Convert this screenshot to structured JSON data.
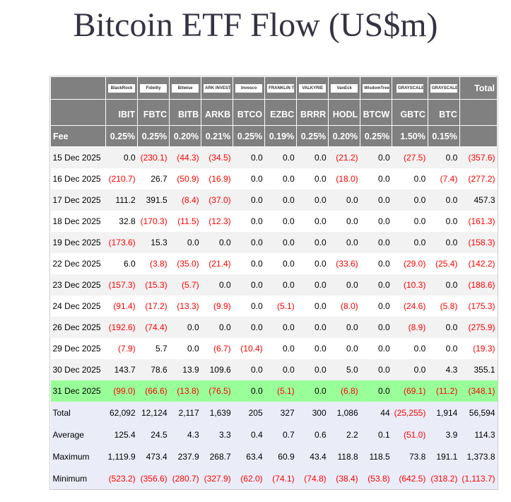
{
  "title": "Bitcoin ETF Flow (US$m)",
  "issuers": [
    "BlackRock",
    "Fidelity",
    "Bitwise",
    "ARK INVEST",
    "Invesco",
    "FRANKLIN TEMPLETON",
    "VALKYRIE",
    "VanEck",
    "WisdomTree",
    "GRAYSCALE",
    "GRAYSCALE"
  ],
  "total_header": "Total",
  "tickers": [
    "IBIT",
    "FBTC",
    "BITB",
    "ARKB",
    "BTCO",
    "EZBC",
    "BRRR",
    "HODL",
    "BTCW",
    "GBTC",
    "BTC"
  ],
  "fee_label": "Fee",
  "fees": [
    "0.25%",
    "0.25%",
    "0.20%",
    "0.21%",
    "0.25%",
    "0.19%",
    "0.25%",
    "0.20%",
    "0.25%",
    "1.50%",
    "0.15%"
  ],
  "rows": [
    {
      "date": "15 Dec 2025",
      "values": [
        "0.0",
        "(230.1)",
        "(44.3)",
        "(34.5)",
        "0.0",
        "0.0",
        "0.0",
        "(21.2)",
        "0.0",
        "(27.5)",
        "0.0",
        "(357.6)"
      ]
    },
    {
      "date": "16 Dec 2025",
      "values": [
        "(210.7)",
        "26.7",
        "(50.9)",
        "(16.9)",
        "0.0",
        "0.0",
        "0.0",
        "(18.0)",
        "0.0",
        "0.0",
        "(7.4)",
        "(277.2)"
      ]
    },
    {
      "date": "17 Dec 2025",
      "values": [
        "111.2",
        "391.5",
        "(8.4)",
        "(37.0)",
        "0.0",
        "0.0",
        "0.0",
        "0.0",
        "0.0",
        "0.0",
        "0.0",
        "457.3"
      ]
    },
    {
      "date": "18 Dec 2025",
      "values": [
        "32.8",
        "(170.3)",
        "(11.5)",
        "(12.3)",
        "0.0",
        "0.0",
        "0.0",
        "0.0",
        "0.0",
        "0.0",
        "0.0",
        "(161.3)"
      ]
    },
    {
      "date": "19 Dec 2025",
      "values": [
        "(173.6)",
        "15.3",
        "0.0",
        "0.0",
        "0.0",
        "0.0",
        "0.0",
        "0.0",
        "0.0",
        "0.0",
        "0.0",
        "(158.3)"
      ]
    },
    {
      "date": "22 Dec 2025",
      "values": [
        "6.0",
        "(3.8)",
        "(35.0)",
        "(21.4)",
        "0.0",
        "0.0",
        "0.0",
        "(33.6)",
        "0.0",
        "(29.0)",
        "(25.4)",
        "(142.2)"
      ]
    },
    {
      "date": "23 Dec 2025",
      "values": [
        "(157.3)",
        "(15.3)",
        "(5.7)",
        "0.0",
        "0.0",
        "0.0",
        "0.0",
        "0.0",
        "0.0",
        "(10.3)",
        "0.0",
        "(188.6)"
      ]
    },
    {
      "date": "24 Dec 2025",
      "values": [
        "(91.4)",
        "(17.2)",
        "(13.3)",
        "(9.9)",
        "0.0",
        "(5.1)",
        "0.0",
        "(8.0)",
        "0.0",
        "(24.6)",
        "(5.8)",
        "(175.3)"
      ]
    },
    {
      "date": "26 Dec 2025",
      "values": [
        "(192.6)",
        "(74.4)",
        "0.0",
        "0.0",
        "0.0",
        "0.0",
        "0.0",
        "0.0",
        "0.0",
        "(8.9)",
        "0.0",
        "(275.9)"
      ]
    },
    {
      "date": "29 Dec 2025",
      "values": [
        "(7.9)",
        "5.7",
        "0.0",
        "(6.7)",
        "(10.4)",
        "0.0",
        "0.0",
        "0.0",
        "0.0",
        "0.0",
        "0.0",
        "(19.3)"
      ]
    },
    {
      "date": "30 Dec 2025",
      "values": [
        "143.7",
        "78.6",
        "13.9",
        "109.6",
        "0.0",
        "0.0",
        "0.0",
        "5.0",
        "0.0",
        "0.0",
        "4.3",
        "355.1"
      ]
    },
    {
      "date": "31 Dec 2025",
      "highlight": true,
      "values": [
        "(99.0)",
        "(66.6)",
        "(13.8)",
        "(76.5)",
        "0.0",
        "(5.1)",
        "0.0",
        "(6.8)",
        "0.0",
        "(69.1)",
        "(11.2)",
        "(348.1)"
      ]
    }
  ],
  "summary": [
    {
      "label": "Total",
      "values": [
        "62,092",
        "12,124",
        "2,117",
        "1,639",
        "205",
        "327",
        "300",
        "1,086",
        "44",
        "(25,255)",
        "1,914",
        "56,594"
      ]
    },
    {
      "label": "Average",
      "values": [
        "125.4",
        "24.5",
        "4.3",
        "3.3",
        "0.4",
        "0.7",
        "0.6",
        "2.2",
        "0.1",
        "(51.0)",
        "3.9",
        "114.3"
      ]
    },
    {
      "label": "Maximum",
      "values": [
        "1,119.9",
        "473.4",
        "237.9",
        "268.7",
        "63.4",
        "60.9",
        "43.4",
        "118.8",
        "118.5",
        "73.8",
        "191.1",
        "1,373.8"
      ]
    },
    {
      "label": "Minimum",
      "values": [
        "(523.2)",
        "(356.6)",
        "(280.7)",
        "(327.9)",
        "(62.0)",
        "(74.1)",
        "(74.8)",
        "(38.4)",
        "(53.8)",
        "(642.5)",
        "(318.2)",
        "(1,113.7)"
      ]
    }
  ],
  "colors": {
    "header": "#808080",
    "negative": "#ff0000",
    "highlight": "#99ff99",
    "summary": "#eaedf7",
    "alt_row": "#f2f2f2"
  }
}
